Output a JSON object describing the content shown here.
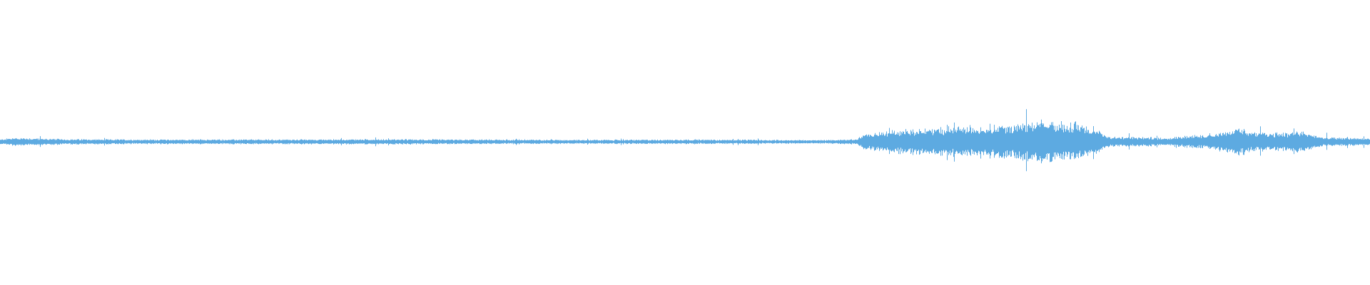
{
  "waveform": {
    "color": "#5daae1",
    "background": "#ffffff",
    "amplitude_envelope": [
      [
        0.0,
        0.08
      ],
      [
        0.01,
        0.14
      ],
      [
        0.05,
        0.09
      ],
      [
        0.1,
        0.08
      ],
      [
        0.2,
        0.08
      ],
      [
        0.28,
        0.09
      ],
      [
        0.33,
        0.08
      ],
      [
        0.45,
        0.07
      ],
      [
        0.5,
        0.08
      ],
      [
        0.6,
        0.06
      ],
      [
        0.625,
        0.09
      ],
      [
        0.63,
        0.25
      ],
      [
        0.66,
        0.42
      ],
      [
        0.7,
        0.5
      ],
      [
        0.74,
        0.6
      ],
      [
        0.76,
        0.7
      ],
      [
        0.79,
        0.62
      ],
      [
        0.81,
        0.18
      ],
      [
        0.85,
        0.14
      ],
      [
        0.88,
        0.25
      ],
      [
        0.905,
        0.45
      ],
      [
        0.92,
        0.3
      ],
      [
        0.95,
        0.35
      ],
      [
        0.965,
        0.16
      ],
      [
        1.0,
        0.12
      ]
    ]
  }
}
